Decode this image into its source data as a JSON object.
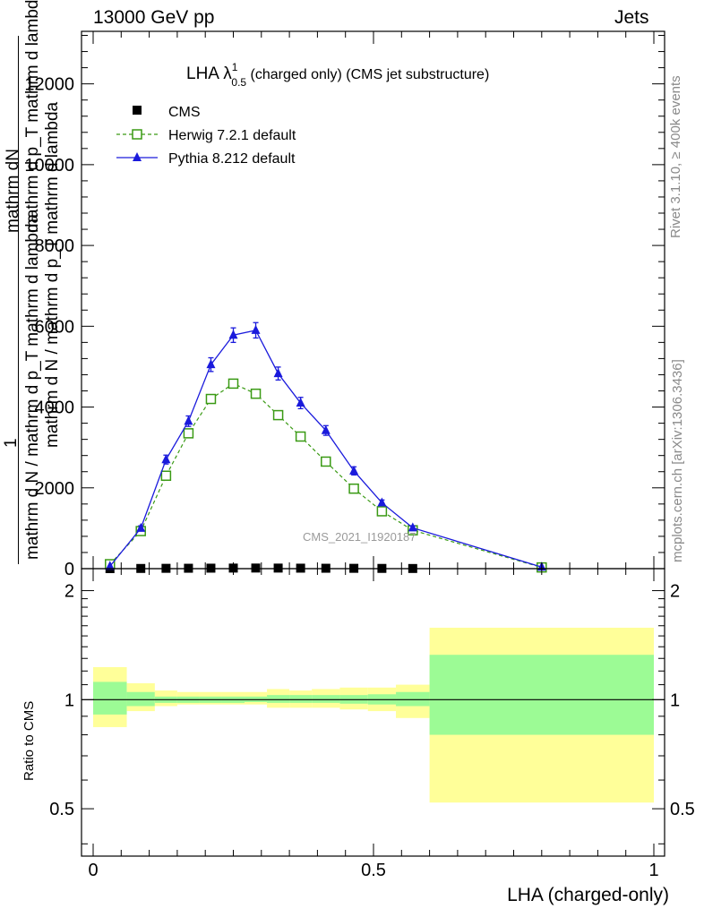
{
  "header": {
    "left": "13000 GeV pp",
    "right": "Jets"
  },
  "side_labels": {
    "rivet": "Rivet 3.1.10, ≥ 400k events",
    "mcplots": "mcplots.cern.ch [arXiv:1306.3436]"
  },
  "main_plot": {
    "title_main": "LHA λ",
    "title_sup": "1",
    "title_sub": "0.5",
    "title_rest": " (charged only) (CMS jet substructure)",
    "watermark": "CMS_2021_I1920187",
    "ylabel_num": "mathrm dN",
    "ylabel_den": "mathrm d p_T mathrm d lambda",
    "ylabel_prefix": "1",
    "ylabel_full": "mathrm d N / mathrm d p_T mathrm d lambda",
    "ylabel_lower": "mathrm d N / mathrm d p_T mathrm d lambda"
  },
  "legend": [
    {
      "name": "CMS",
      "marker": "filled-square",
      "color": "#000000"
    },
    {
      "name": "Herwig 7.2.1 default",
      "marker": "open-square-dashed",
      "color": "#3a9a14"
    },
    {
      "name": "Pythia 8.212 default",
      "marker": "filled-triangle-solid",
      "color": "#1a1adc"
    }
  ],
  "ratio_plot": {
    "ylabel": "Ratio to CMS"
  },
  "xlabel": "LHA (charged-only)",
  "chart_data": [
    {
      "type": "line",
      "title": "LHA λ^1_0.5 (charged only) (CMS jet substructure)",
      "xlabel": "LHA (charged-only)",
      "ylabel": "1/N dN/dp_T dλ",
      "xlim": [
        -0.02,
        1.01
      ],
      "ylim": [
        0,
        13300
      ],
      "yticks": [
        0,
        2000,
        4000,
        6000,
        8000,
        10000,
        12000
      ],
      "ytick_labels": [
        "0",
        "2000",
        "4000",
        "6000",
        "8000",
        "10000",
        "12000"
      ],
      "xticks": [
        0,
        0.5,
        1
      ],
      "x": [
        0.03,
        0.085,
        0.13,
        0.17,
        0.21,
        0.25,
        0.29,
        0.33,
        0.37,
        0.415,
        0.465,
        0.515,
        0.57,
        0.8
      ],
      "series": [
        {
          "name": "CMS",
          "values": [
            0,
            5,
            8,
            10,
            12,
            14,
            15,
            14,
            12,
            10,
            8,
            6,
            4,
            null
          ]
        },
        {
          "name": "Herwig 7.2.1 default",
          "values": [
            110,
            930,
            2300,
            3350,
            4200,
            4580,
            4330,
            3800,
            3270,
            2650,
            1980,
            1420,
            950,
            30
          ]
        },
        {
          "name": "Pythia 8.212 default",
          "values": [
            60,
            1000,
            2700,
            3650,
            5050,
            5780,
            5900,
            4830,
            4100,
            3420,
            2420,
            1630,
            1010,
            40
          ],
          "errors": [
            0,
            60,
            110,
            130,
            170,
            180,
            190,
            160,
            140,
            120,
            100,
            70,
            50,
            0
          ]
        }
      ]
    },
    {
      "type": "area",
      "title": "Ratio to CMS",
      "ylabel": "Ratio to CMS",
      "ylim": [
        0.37,
        2.3
      ],
      "yticks": [
        0.5,
        1,
        2
      ],
      "ytick_labels": [
        "0.5",
        "1",
        "2"
      ],
      "xticks": [
        0,
        0.5,
        1
      ],
      "xtick_labels": [
        "0",
        "0.5",
        "1"
      ],
      "bins": [
        {
          "lo": 0.0,
          "hi": 0.06,
          "stat": [
            0.91,
            1.12
          ],
          "total": [
            0.84,
            1.23
          ]
        },
        {
          "lo": 0.06,
          "hi": 0.11,
          "stat": [
            0.96,
            1.05
          ],
          "total": [
            0.93,
            1.11
          ]
        },
        {
          "lo": 0.11,
          "hi": 0.15,
          "stat": [
            0.98,
            1.02
          ],
          "total": [
            0.96,
            1.06
          ]
        },
        {
          "lo": 0.15,
          "hi": 0.19,
          "stat": [
            0.98,
            1.02
          ],
          "total": [
            0.97,
            1.05
          ]
        },
        {
          "lo": 0.19,
          "hi": 0.23,
          "stat": [
            0.98,
            1.02
          ],
          "total": [
            0.97,
            1.05
          ]
        },
        {
          "lo": 0.23,
          "hi": 0.27,
          "stat": [
            0.98,
            1.02
          ],
          "total": [
            0.97,
            1.05
          ]
        },
        {
          "lo": 0.27,
          "hi": 0.31,
          "stat": [
            0.985,
            1.02
          ],
          "total": [
            0.97,
            1.05
          ]
        },
        {
          "lo": 0.31,
          "hi": 0.35,
          "stat": [
            0.98,
            1.03
          ],
          "total": [
            0.95,
            1.07
          ]
        },
        {
          "lo": 0.35,
          "hi": 0.39,
          "stat": [
            0.98,
            1.03
          ],
          "total": [
            0.95,
            1.06
          ]
        },
        {
          "lo": 0.39,
          "hi": 0.44,
          "stat": [
            0.98,
            1.03
          ],
          "total": [
            0.95,
            1.07
          ]
        },
        {
          "lo": 0.44,
          "hi": 0.49,
          "stat": [
            0.975,
            1.03
          ],
          "total": [
            0.94,
            1.08
          ]
        },
        {
          "lo": 0.49,
          "hi": 0.54,
          "stat": [
            0.97,
            1.035
          ],
          "total": [
            0.93,
            1.08
          ]
        },
        {
          "lo": 0.54,
          "hi": 0.6,
          "stat": [
            0.96,
            1.05
          ],
          "total": [
            0.89,
            1.1
          ]
        },
        {
          "lo": 0.6,
          "hi": 1.0,
          "stat": [
            0.8,
            1.33
          ],
          "total": [
            0.52,
            1.58
          ]
        }
      ],
      "band_colors": {
        "stat": "#9cfb95",
        "total": "#ffff99"
      }
    }
  ]
}
